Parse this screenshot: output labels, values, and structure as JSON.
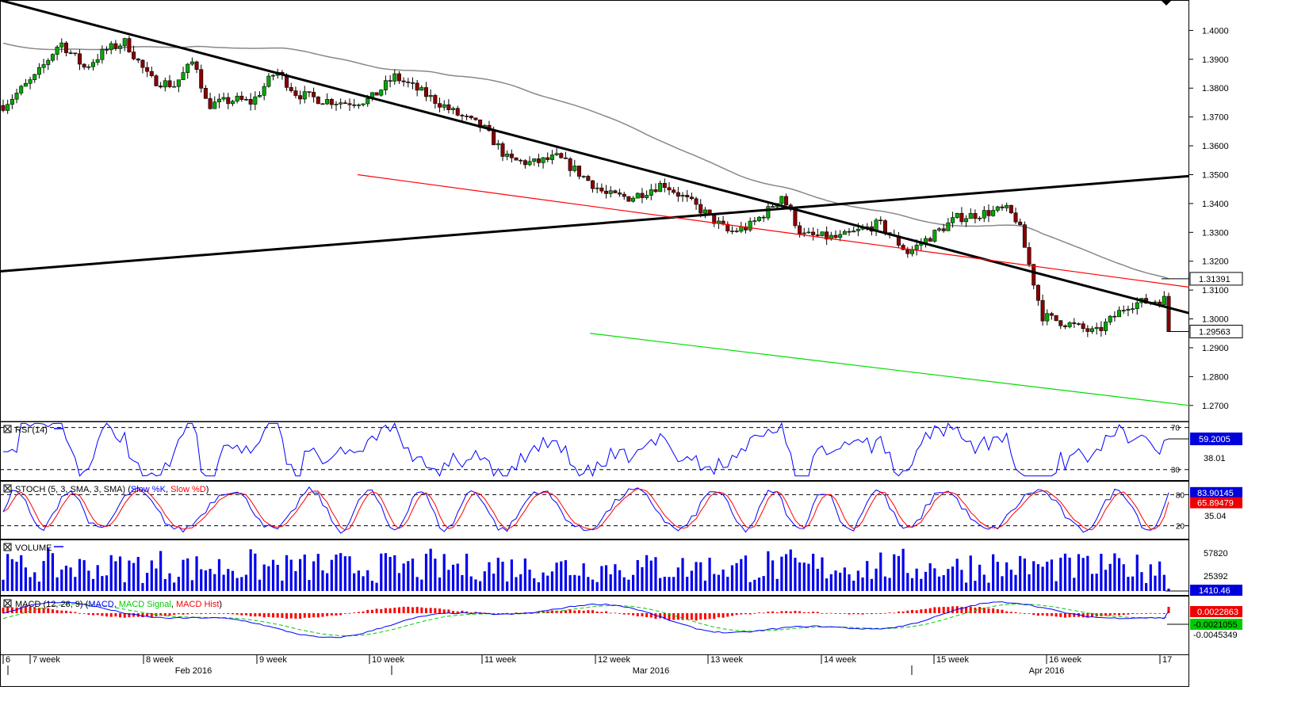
{
  "chart_data": [
    {
      "type": "candlestick",
      "panel": "price",
      "ylim": [
        1.265,
        1.41
      ],
      "y_ticks": [
        "1.4000",
        "1.3900",
        "1.3800",
        "1.3700",
        "1.3600",
        "1.3500",
        "1.3400",
        "1.3300",
        "1.3200",
        "1.3100",
        "1.3000",
        "1.2900",
        "1.2800",
        "1.2700"
      ],
      "y_tick_values": [
        1.4,
        1.39,
        1.38,
        1.37,
        1.36,
        1.35,
        1.34,
        1.33,
        1.32,
        1.31,
        1.3,
        1.29,
        1.28,
        1.27
      ],
      "current_price_label": "1.29563",
      "current_price": 1.29563,
      "ma_label": "1.31391",
      "ma_value": 1.31391,
      "candle_count": 260,
      "close_path": [
        [
          0,
          1.374
        ],
        [
          8,
          1.384
        ],
        [
          14,
          1.396
        ],
        [
          20,
          1.387
        ],
        [
          25,
          1.393
        ],
        [
          30,
          1.396
        ],
        [
          36,
          1.383
        ],
        [
          42,
          1.381
        ],
        [
          47,
          1.39
        ],
        [
          50,
          1.374
        ],
        [
          57,
          1.376
        ],
        [
          61,
          1.375
        ],
        [
          67,
          1.386
        ],
        [
          72,
          1.378
        ],
        [
          78,
          1.376
        ],
        [
          84,
          1.375
        ],
        [
          90,
          1.376
        ],
        [
          96,
          1.384
        ],
        [
          101,
          1.38
        ],
        [
          108,
          1.374
        ],
        [
          110,
          1.372
        ],
        [
          118,
          1.366
        ],
        [
          124,
          1.355
        ],
        [
          130,
          1.354
        ],
        [
          136,
          1.356
        ],
        [
          140,
          1.352
        ],
        [
          148,
          1.343
        ],
        [
          154,
          1.342
        ],
        [
          162,
          1.347
        ],
        [
          172,
          1.337
        ],
        [
          178,
          1.33
        ],
        [
          183,
          1.332
        ],
        [
          188,
          1.338
        ],
        [
          191,
          1.343
        ],
        [
          196,
          1.329
        ],
        [
          205,
          1.328
        ],
        [
          215,
          1.333
        ],
        [
          222,
          1.323
        ],
        [
          234,
          1.335
        ],
        [
          246,
          1.338
        ],
        [
          249,
          1.334
        ],
        [
          255,
          1.301
        ],
        [
          262,
          1.298
        ],
        [
          268,
          1.295
        ],
        [
          276,
          1.305
        ],
        [
          286,
          1.307
        ]
      ],
      "trendlines": [
        {
          "color": "#000000",
          "from": [
            "start",
            1.4105
          ],
          "to": [
            "end",
            1.302
          ]
        },
        {
          "color": "#000000",
          "from": [
            "start",
            1.3165
          ],
          "to": [
            "end",
            1.3495
          ]
        },
        {
          "color": "#ff0000",
          "from": [
            87,
            1.35
          ],
          "to": [
            "end",
            1.311
          ]
        },
        {
          "color": "#00dd00",
          "from": [
            144,
            1.295
          ],
          "to": [
            "end",
            1.27
          ]
        }
      ],
      "moving_average_color": "#888888"
    },
    {
      "type": "line",
      "panel": "rsi",
      "label": "RSI (14)",
      "level_labels": [
        "70",
        "30"
      ],
      "levels": [
        70,
        30
      ],
      "value_label": "59.2005",
      "aux_label": "38.01"
    },
    {
      "type": "line",
      "panel": "stoch",
      "label": "STOCH (5, 3, SMA, 3, SMA)",
      "series": [
        {
          "name": "Slow %K",
          "color": "#0000ff"
        },
        {
          "name": "Slow %D",
          "color": "#ff0000"
        }
      ],
      "level_labels": [
        "80",
        "20"
      ],
      "levels": [
        80,
        20
      ],
      "k_label": "83.90145",
      "d_label": "65.89479",
      "aux_label": "35.04"
    },
    {
      "type": "bar",
      "panel": "volume",
      "label": "VOLUME",
      "tick_labels": [
        "57820",
        "25392"
      ],
      "value_label": "1410.46"
    },
    {
      "type": "line",
      "panel": "macd",
      "label": "MACD (12, 26, 9)",
      "series": [
        {
          "name": "MACD",
          "color": "#0000ff"
        },
        {
          "name": "MACD Signal",
          "color": "#00cc00"
        },
        {
          "name": "MACD Hist",
          "color": "#ff0000"
        }
      ],
      "macd_label": "0.0022863",
      "signal_label": "-0.0021055",
      "aux_label": "-0.0045349"
    }
  ],
  "x_axis": {
    "week_labels": [
      "6",
      "7 week",
      "8 week",
      "9 week",
      "10 week",
      "11 week",
      "12 week",
      "13 week",
      "14 week",
      "15 week",
      "16 week",
      "17"
    ],
    "month_labels": [
      "Feb 2016",
      "Mar 2016",
      "Apr 2016"
    ]
  },
  "colors": {
    "bull": "#00aa00",
    "bear": "#880000",
    "axis_box": "#000000",
    "ma_box": "#555555"
  }
}
